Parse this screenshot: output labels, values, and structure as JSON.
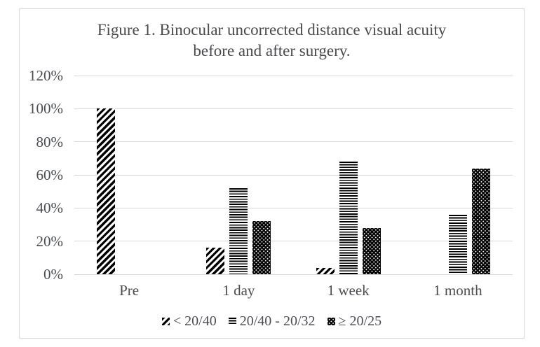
{
  "chart": {
    "title_line1": "Figure 1. Binocular uncorrected distance visual acuity",
    "title_line2": "before and after surgery."
  },
  "chart_data": {
    "type": "bar",
    "title": "Figure 1. Binocular uncorrected distance visual acuity before and after surgery.",
    "categories": [
      "Pre",
      "1 day",
      "1 week",
      "1 month"
    ],
    "series": [
      {
        "name": "< 20/40",
        "pattern": "diagonal-hatch-pattern",
        "values": [
          100,
          16,
          4,
          0
        ]
      },
      {
        "name": "20/40 - 20/32",
        "pattern": "horizontal-lines-pattern",
        "values": [
          0,
          52,
          68,
          36
        ]
      },
      {
        "name": "≥ 20/25",
        "pattern": "dots-pattern",
        "values": [
          0,
          32,
          28,
          64
        ]
      }
    ],
    "xlabel": "",
    "ylabel": "",
    "ylim": [
      0,
      120
    ],
    "ytick_step": 20,
    "ytick_labels": [
      "0%",
      "20%",
      "40%",
      "60%",
      "80%",
      "100%",
      "120%"
    ],
    "grid": true,
    "legend_position": "bottom",
    "colors": {
      "bar_ink": "#000000",
      "bar_background": "#ffffff",
      "gridline": "#d9d9d9",
      "frame_border": "#d9d9d9",
      "text": "#4a4d52"
    }
  }
}
